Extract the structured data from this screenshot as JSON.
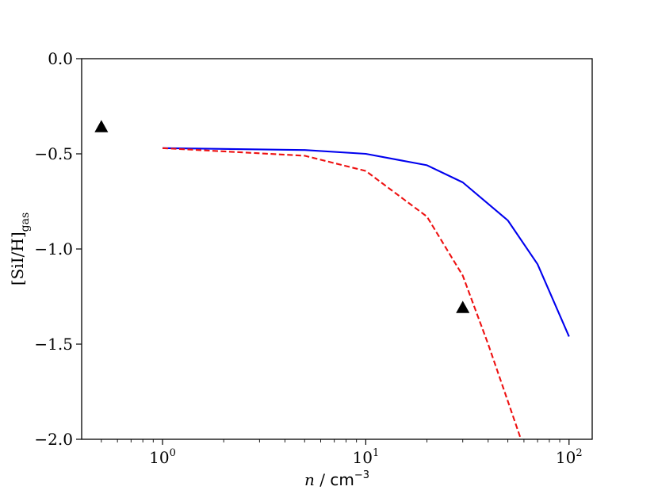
{
  "chart_data": {
    "type": "line",
    "title": "",
    "xlabel": {
      "var": "n",
      "sep": " / ",
      "unit": "cm",
      "exp": "−3"
    },
    "ylabel": {
      "main": "[SiI/H]",
      "sub": "gas"
    },
    "xscale": "log",
    "xlim": [
      0.4,
      130
    ],
    "ylim": [
      -2.0,
      0.0
    ],
    "grid": false,
    "legend": "none",
    "x_ticks": [
      {
        "value": 1,
        "base": "10",
        "exp": "0"
      },
      {
        "value": 10,
        "base": "10",
        "exp": "1"
      },
      {
        "value": 100,
        "base": "10",
        "exp": "2"
      }
    ],
    "y_ticks": [
      {
        "value": 0.0,
        "label": "0.0"
      },
      {
        "value": -0.5,
        "label": "−0.5"
      },
      {
        "value": -1.0,
        "label": "−1.0"
      },
      {
        "value": -1.5,
        "label": "−1.5"
      },
      {
        "value": -2.0,
        "label": "−2.0"
      }
    ],
    "series": [
      {
        "style": "solid",
        "color": "#0000ee",
        "x": [
          1,
          5,
          10,
          20,
          30,
          50,
          70,
          100
        ],
        "y": [
          -0.47,
          -0.48,
          -0.5,
          -0.56,
          -0.65,
          -0.85,
          -1.08,
          -1.46
        ]
      },
      {
        "style": "dashed",
        "color": "#ee1111",
        "x": [
          1,
          5,
          10,
          20,
          30,
          40,
          50,
          58
        ],
        "y": [
          -0.47,
          -0.51,
          -0.59,
          -0.83,
          -1.14,
          -1.5,
          -1.8,
          -2.0
        ]
      }
    ],
    "markers": [
      {
        "shape": "triangle",
        "color": "#000000",
        "x": 0.5,
        "y": -0.36
      },
      {
        "shape": "triangle",
        "color": "#000000",
        "x": 30,
        "y": -1.31
      }
    ]
  }
}
